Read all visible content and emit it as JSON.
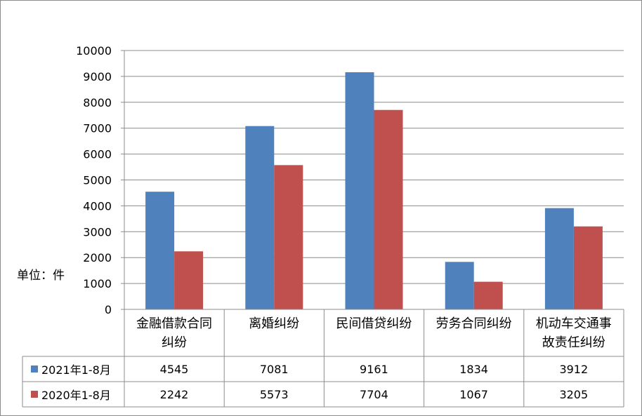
{
  "chart_data": {
    "type": "bar",
    "unit_label": "单位：件",
    "categories": [
      "金融借款合同纠纷",
      "离婚纠纷",
      "民间借贷纠纷",
      "劳务合同纠纷",
      "机动车交通事故责任纠纷"
    ],
    "category_lines": [
      [
        "金融借款合同",
        "纠纷"
      ],
      [
        "离婚纠纷"
      ],
      [
        "民间借贷纠纷"
      ],
      [
        "劳务合同纠纷"
      ],
      [
        "机动车交通事",
        "故责任纠纷"
      ]
    ],
    "series": [
      {
        "name": "2021年1-8月",
        "color": "#4f81bd",
        "values": [
          4545,
          7081,
          9161,
          1834,
          3912
        ],
        "value_labels": [
          "4545",
          "7081",
          "9161",
          "1834",
          "3912"
        ]
      },
      {
        "name": "2020年1-8月",
        "color": "#c0504d",
        "values": [
          2242,
          5573,
          7704,
          1067,
          3205
        ],
        "value_labels": [
          "2242",
          "5573",
          "7704",
          "1067",
          "3205"
        ]
      }
    ],
    "ylim": [
      0,
      10000
    ],
    "yticks": [
      0,
      1000,
      2000,
      3000,
      4000,
      5000,
      6000,
      7000,
      8000,
      9000,
      10000
    ],
    "ytick_labels": [
      "0",
      "1000",
      "2000",
      "3000",
      "4000",
      "5000",
      "6000",
      "7000",
      "8000",
      "9000",
      "10000"
    ],
    "grid": true,
    "legend": "data-table"
  }
}
